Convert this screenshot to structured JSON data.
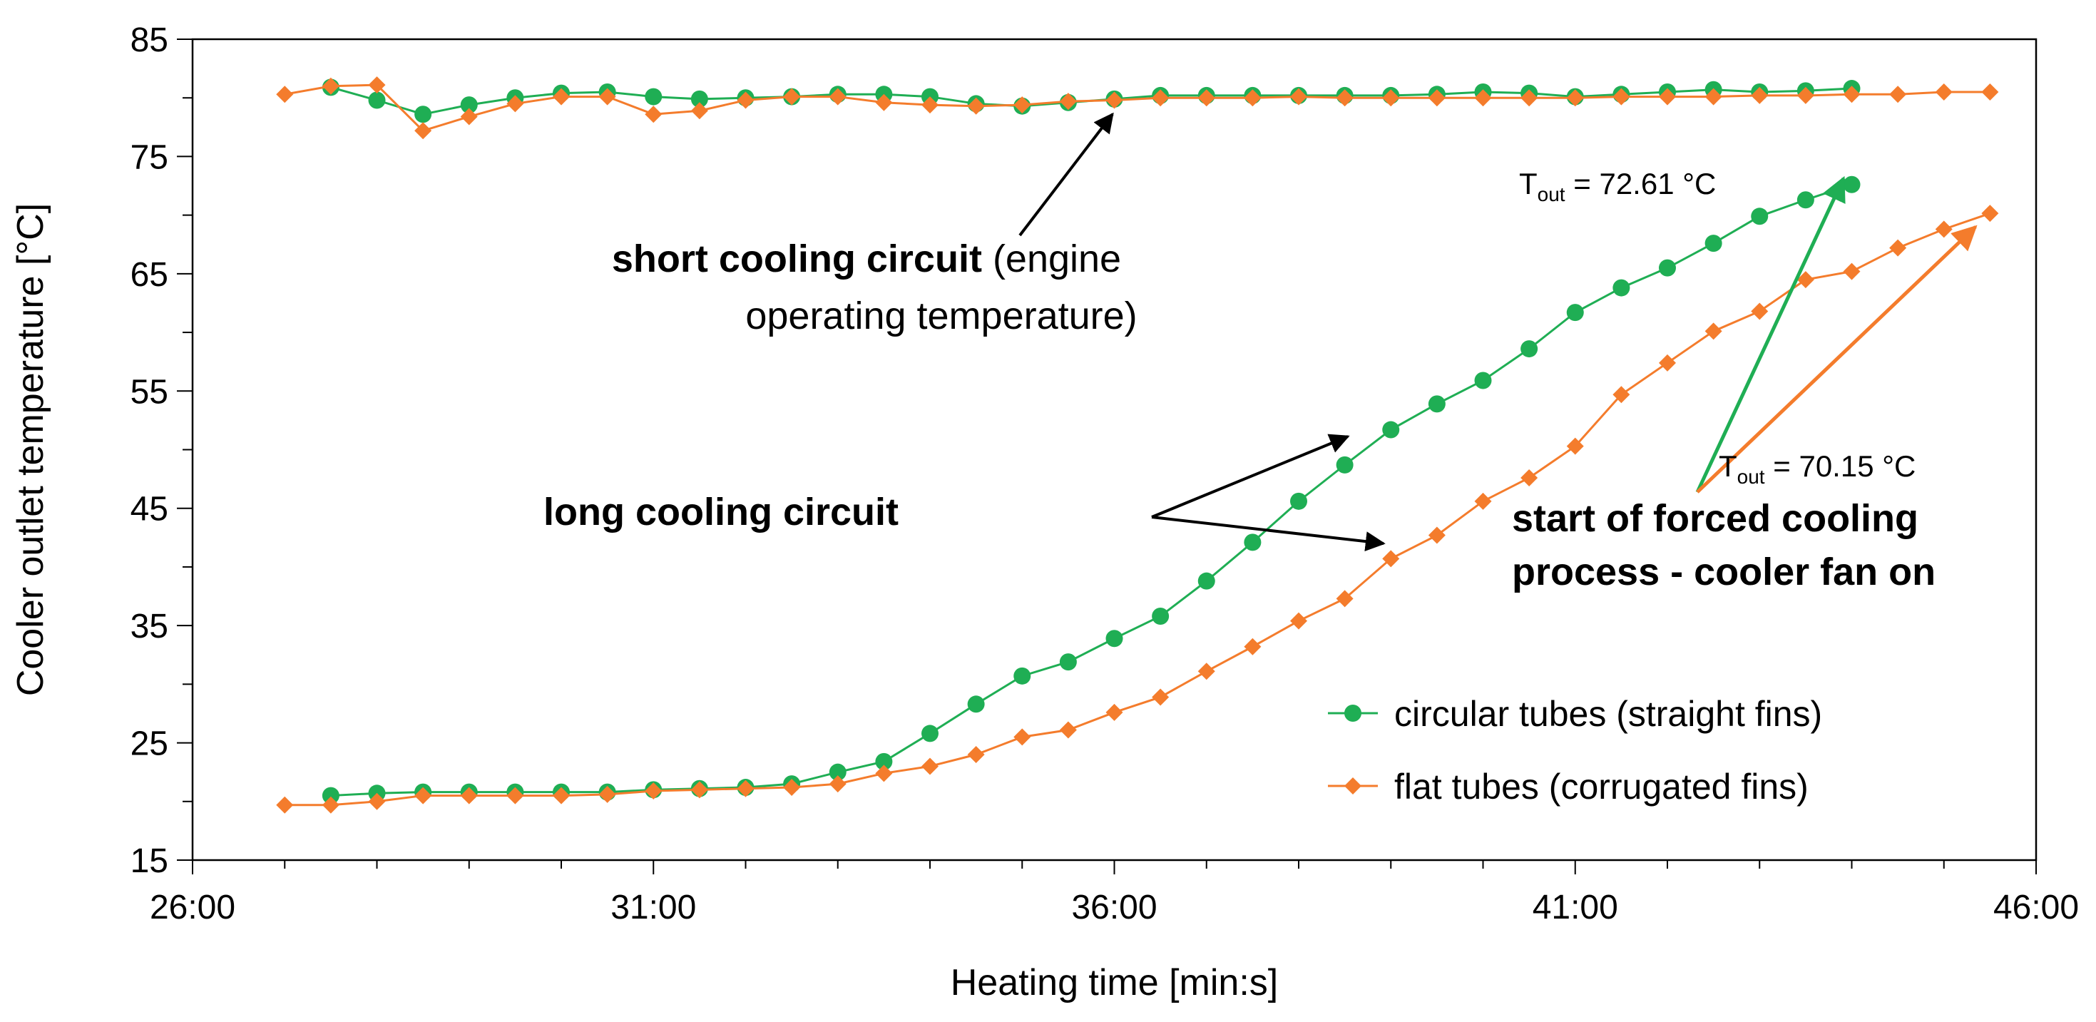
{
  "chart_data": {
    "type": "line",
    "title": "",
    "xlabel": "Heating time [min:s]",
    "ylabel": "Cooler outlet temperature [°C]",
    "xlim": [
      "26:00",
      "46:00"
    ],
    "ylim": [
      15,
      85
    ],
    "x_ticks": [
      "26:00",
      "31:00",
      "36:00",
      "41:00",
      "46:00"
    ],
    "y_ticks": [
      15,
      25,
      35,
      45,
      55,
      65,
      75,
      85
    ],
    "grid": false,
    "legend_position": "bottom-right",
    "series": [
      {
        "name": "circular tubes (straight fins)",
        "circuit": "short",
        "color": "#1fae54",
        "marker": "circle",
        "x": [
          "27:30",
          "28:00",
          "28:30",
          "29:00",
          "29:30",
          "30:00",
          "30:30",
          "31:00",
          "31:30",
          "32:00",
          "32:30",
          "33:00",
          "33:30",
          "34:00",
          "34:30",
          "35:00",
          "35:30",
          "36:00",
          "36:30",
          "37:00",
          "37:30",
          "38:00",
          "38:30",
          "39:00",
          "39:30",
          "40:00",
          "40:30",
          "41:00",
          "41:30",
          "42:00",
          "42:30",
          "43:00",
          "43:30",
          "44:00"
        ],
        "y": [
          80.9,
          79.8,
          78.6,
          79.4,
          80.0,
          80.4,
          80.5,
          80.1,
          79.9,
          80.0,
          80.1,
          80.3,
          80.3,
          80.1,
          79.5,
          79.3,
          79.6,
          79.9,
          80.2,
          80.2,
          80.2,
          80.2,
          80.2,
          80.2,
          80.3,
          80.5,
          80.4,
          80.1,
          80.3,
          80.5,
          80.7,
          80.5,
          80.6,
          80.8
        ]
      },
      {
        "name": "flat tubes (corrugated fins)",
        "circuit": "short",
        "color": "#f47c2c",
        "marker": "diamond",
        "x": [
          "27:00",
          "27:30",
          "28:00",
          "28:30",
          "29:00",
          "29:30",
          "30:00",
          "30:30",
          "31:00",
          "31:30",
          "32:00",
          "32:30",
          "33:00",
          "33:30",
          "34:00",
          "34:30",
          "35:00",
          "35:30",
          "36:00",
          "36:30",
          "37:00",
          "37:30",
          "38:00",
          "38:30",
          "39:00",
          "39:30",
          "40:00",
          "40:30",
          "41:00",
          "41:30",
          "42:00",
          "42:30",
          "43:00",
          "43:30",
          "44:00",
          "44:30",
          "45:00",
          "45:30"
        ],
        "y": [
          80.3,
          81.0,
          81.1,
          77.2,
          78.4,
          79.5,
          80.1,
          80.1,
          78.6,
          78.9,
          79.8,
          80.1,
          80.1,
          79.6,
          79.4,
          79.3,
          79.4,
          79.7,
          79.8,
          80.0,
          80.0,
          80.0,
          80.1,
          80.0,
          80.0,
          80.0,
          80.0,
          80.0,
          80.0,
          80.1,
          80.1,
          80.1,
          80.2,
          80.2,
          80.3,
          80.3,
          80.5,
          80.5
        ]
      },
      {
        "name": "circular tubes (straight fins)",
        "circuit": "long",
        "color": "#1fae54",
        "marker": "circle",
        "x": [
          "27:30",
          "28:00",
          "28:30",
          "29:00",
          "29:30",
          "30:00",
          "30:30",
          "31:00",
          "31:30",
          "32:00",
          "32:30",
          "33:00",
          "33:30",
          "34:00",
          "34:30",
          "35:00",
          "35:30",
          "36:00",
          "36:30",
          "37:00",
          "37:30",
          "38:00",
          "38:30",
          "39:00",
          "39:30",
          "40:00",
          "40:30",
          "41:00",
          "41:30",
          "42:00",
          "42:30",
          "43:00",
          "43:30",
          "44:00"
        ],
        "y": [
          20.5,
          20.7,
          20.8,
          20.8,
          20.8,
          20.8,
          20.8,
          21.0,
          21.1,
          21.2,
          21.5,
          22.5,
          23.4,
          25.8,
          28.3,
          30.7,
          31.9,
          33.9,
          35.8,
          38.8,
          42.1,
          45.6,
          48.7,
          51.7,
          53.9,
          55.9,
          58.6,
          61.7,
          63.8,
          65.5,
          67.6,
          69.9,
          71.3,
          72.61
        ]
      },
      {
        "name": "flat tubes (corrugated fins)",
        "circuit": "long",
        "color": "#f47c2c",
        "marker": "diamond",
        "x": [
          "27:00",
          "27:30",
          "28:00",
          "28:30",
          "29:00",
          "29:30",
          "30:00",
          "30:30",
          "31:00",
          "31:30",
          "32:00",
          "32:30",
          "33:00",
          "33:30",
          "34:00",
          "34:30",
          "35:00",
          "35:30",
          "36:00",
          "36:30",
          "37:00",
          "37:30",
          "38:00",
          "38:30",
          "39:00",
          "39:30",
          "40:00",
          "40:30",
          "41:00",
          "41:30",
          "42:00",
          "42:30",
          "43:00",
          "43:30",
          "44:00",
          "44:30",
          "45:00",
          "45:30"
        ],
        "y": [
          19.7,
          19.7,
          20.0,
          20.5,
          20.5,
          20.5,
          20.5,
          20.6,
          20.9,
          21.0,
          21.1,
          21.2,
          21.5,
          22.4,
          23.0,
          24.0,
          25.5,
          26.1,
          27.6,
          28.9,
          31.1,
          33.2,
          35.4,
          37.3,
          40.7,
          42.7,
          45.6,
          47.6,
          50.3,
          54.7,
          57.4,
          60.1,
          61.8,
          64.5,
          65.2,
          67.2,
          68.8,
          70.15
        ]
      }
    ],
    "annotations": [
      {
        "id": "short",
        "bold": "short cooling circuit",
        "normal": " (engine",
        "line2": "operating temperature)"
      },
      {
        "id": "long",
        "bold": "long cooling circuit"
      },
      {
        "id": "fan",
        "line1": "start of forced cooling",
        "line2": "process - cooler fan on"
      },
      {
        "id": "t_green",
        "prefix": "T",
        "sub": "out",
        "value": " = 72.61 °C"
      },
      {
        "id": "t_orange",
        "prefix": "T",
        "sub": "out",
        "value": " = 70.15 °C"
      }
    ]
  }
}
